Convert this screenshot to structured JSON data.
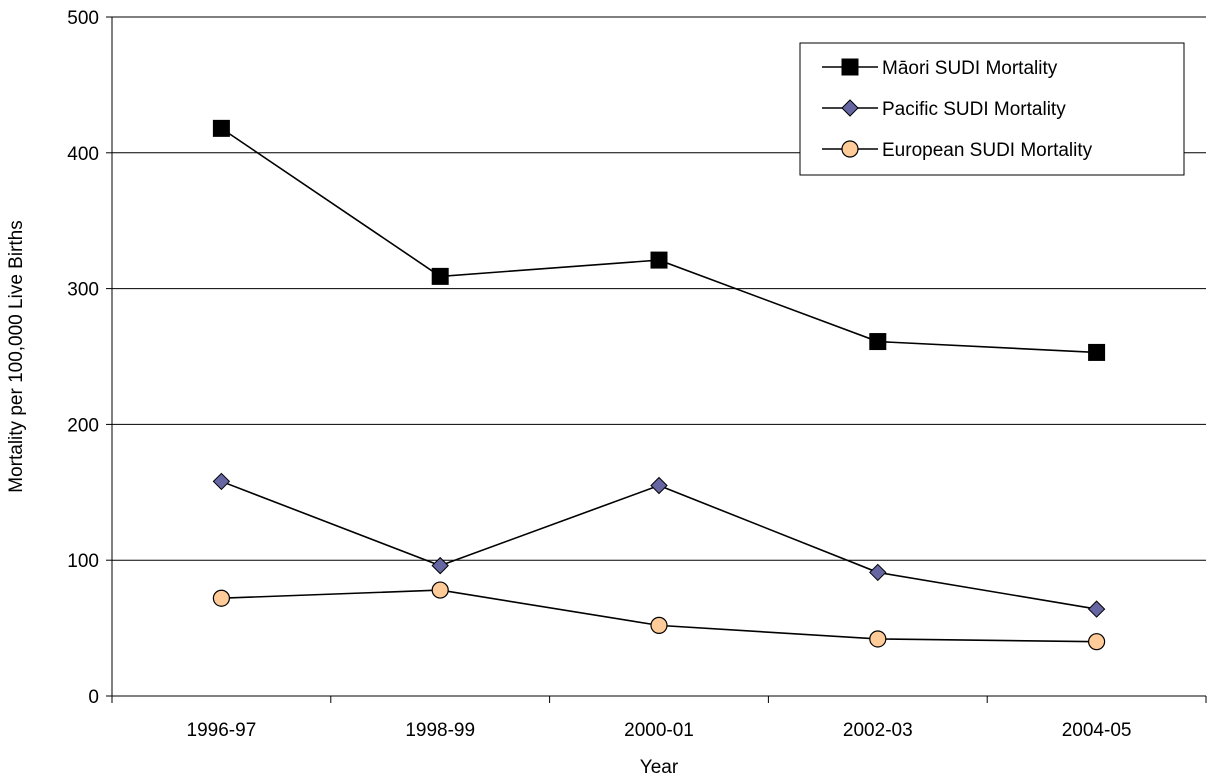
{
  "chart_data": {
    "type": "line",
    "title": "",
    "xlabel": "Year",
    "ylabel": "Mortality per 100,000 Live Births",
    "categories": [
      "1996-97",
      "1998-99",
      "2000-01",
      "2002-03",
      "2004-05"
    ],
    "ylim": [
      0,
      500
    ],
    "yticks": [
      "0",
      "100",
      "200",
      "300",
      "400",
      "500"
    ],
    "grid": "horizontal",
    "legend_position": "top-right",
    "series": [
      {
        "name": "Māori SUDI Mortality",
        "marker": "square",
        "marker_color": "#000000",
        "values": [
          418,
          309,
          321,
          261,
          253
        ]
      },
      {
        "name": "Pacific SUDI Mortality",
        "marker": "diamond",
        "marker_color": "#6666a3",
        "values": [
          158,
          96,
          155,
          91,
          64
        ]
      },
      {
        "name": "European SUDI Mortality",
        "marker": "circle",
        "marker_color": "#ffcc99",
        "values": [
          72,
          78,
          52,
          42,
          40
        ]
      }
    ]
  }
}
